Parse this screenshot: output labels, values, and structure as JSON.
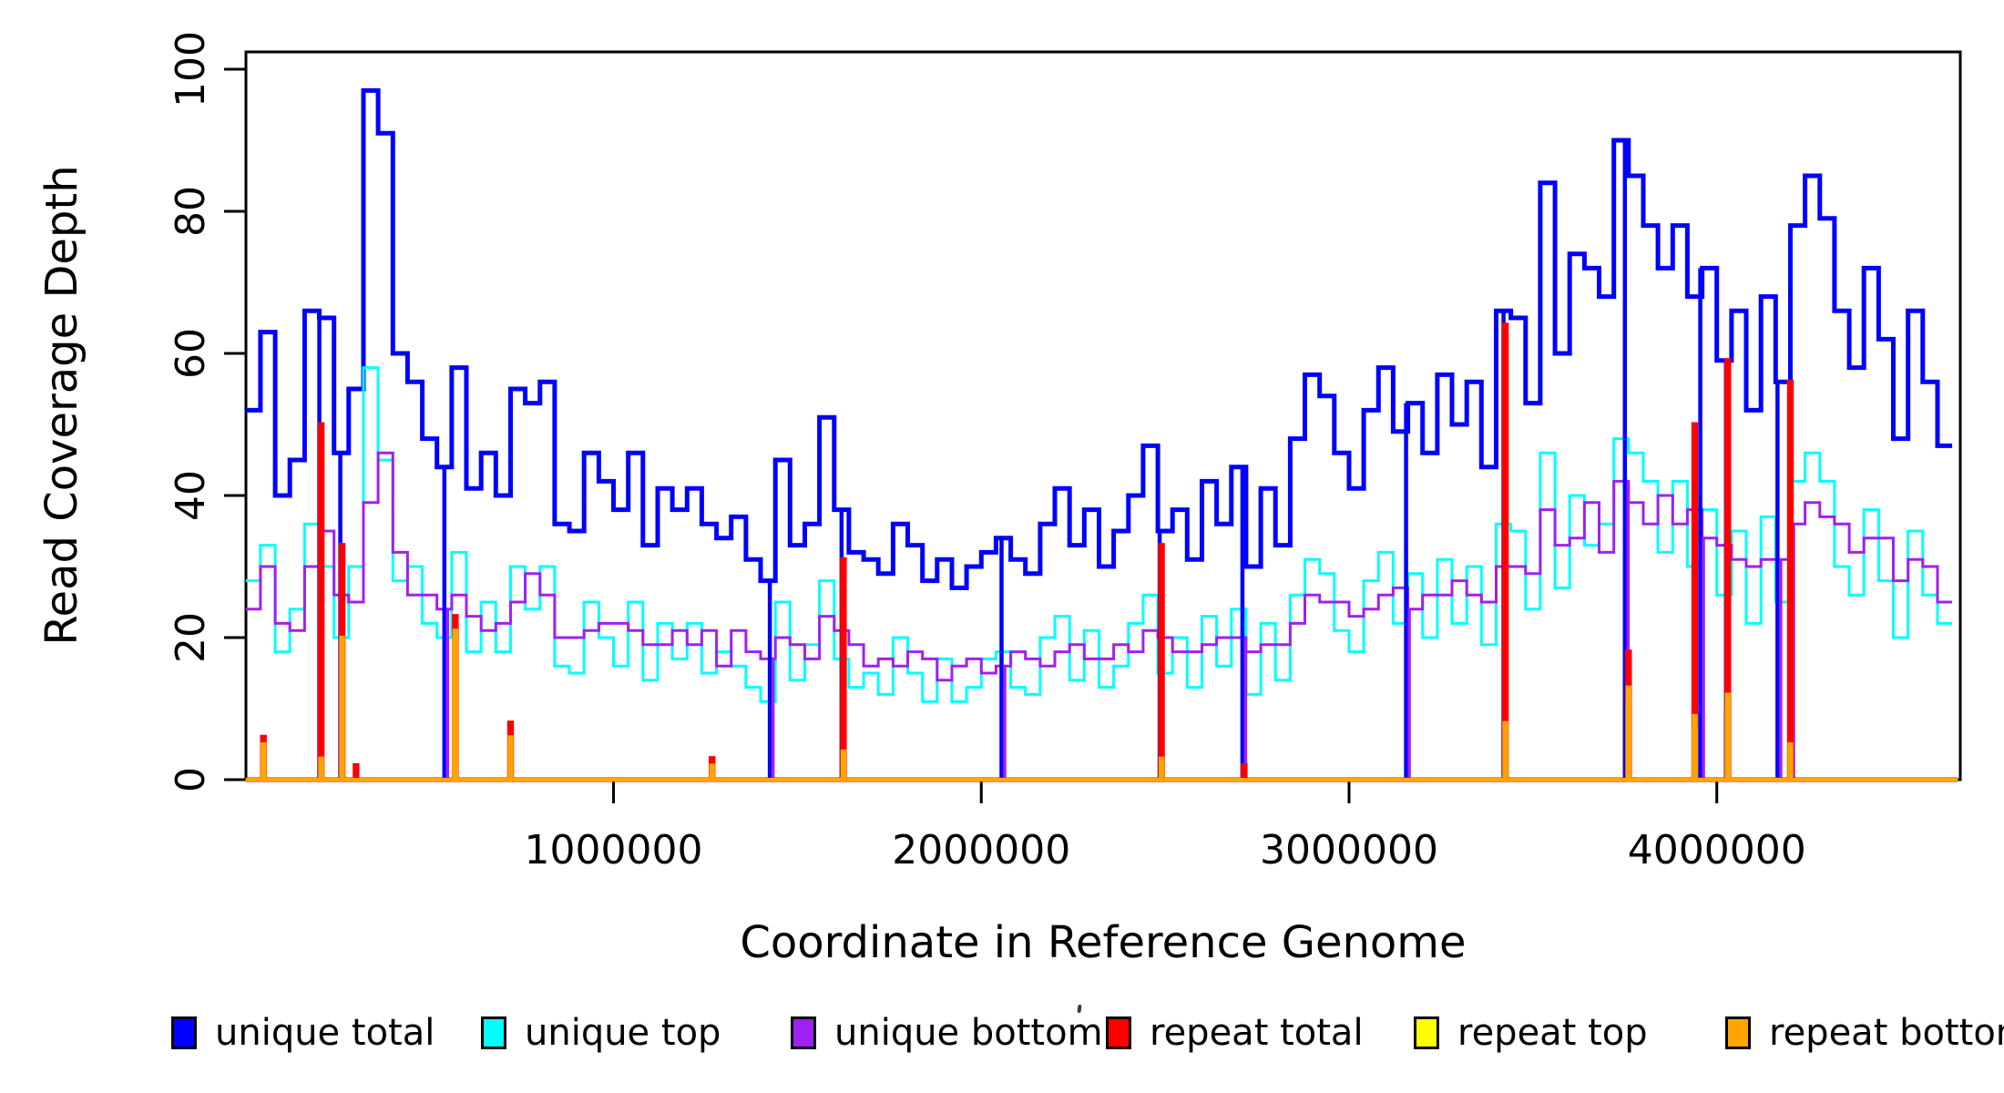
{
  "y_axis": {
    "label": "Read Coverage Depth",
    "tick_labels": [
      "0",
      "20",
      "40",
      "60",
      "80",
      "100"
    ],
    "tick_values": [
      0,
      20,
      40,
      60,
      80,
      100
    ],
    "range": [
      0,
      102
    ]
  },
  "x_axis": {
    "label": "Coordinate in Reference Genome",
    "tick_labels": [
      "1000000",
      "2000000",
      "3000000",
      "4000000"
    ],
    "tick_values": [
      1000000,
      2000000,
      3000000,
      4000000
    ],
    "range": [
      0,
      4662000
    ]
  },
  "legend": {
    "entries": [
      {
        "label": "unique total",
        "color": "#0000FF"
      },
      {
        "label": "unique top",
        "color": "#00FFFF"
      },
      {
        "label": "unique bottom",
        "color": "#A020F0"
      },
      {
        "label": "repeat total",
        "color": "#FF0000"
      },
      {
        "label": "repeat top",
        "color": "#FFFF00"
      },
      {
        "label": "repeat bottom",
        "color": "#FFA500"
      }
    ]
  },
  "chart_data": {
    "type": "line",
    "subtype": "step-coverage",
    "title": "",
    "xlabel": "Coordinate in Reference Genome",
    "ylabel": "Read Coverage Depth",
    "xlim": [
      0,
      4662000
    ],
    "ylim": [
      0,
      102
    ],
    "grid": false,
    "legend_position": "bottom",
    "bin_size_bp": 40000,
    "x_start_bp": 0,
    "genome_length_bp": 4640000,
    "series": [
      {
        "name": "unique total",
        "color": "#0000FF",
        "line_width": 5,
        "values": [
          52,
          63,
          40,
          45,
          66,
          65,
          46,
          55,
          97,
          91,
          60,
          56,
          48,
          44,
          58,
          41,
          46,
          40,
          55,
          53,
          56,
          36,
          35,
          46,
          42,
          38,
          46,
          33,
          41,
          38,
          41,
          36,
          34,
          37,
          31,
          28,
          45,
          33,
          36,
          51,
          38,
          32,
          31,
          29,
          36,
          33,
          28,
          31,
          27,
          30,
          32,
          34,
          31,
          29,
          36,
          41,
          33,
          38,
          30,
          35,
          40,
          47,
          35,
          38,
          31,
          42,
          36,
          44,
          30,
          41,
          33,
          48,
          57,
          54,
          46,
          41,
          52,
          58,
          49,
          53,
          46,
          57,
          50,
          56,
          44,
          66,
          65,
          53,
          84,
          60,
          74,
          72,
          68,
          90,
          85,
          78,
          72,
          78,
          68,
          72,
          59,
          66,
          52,
          68,
          56,
          78,
          85,
          79,
          66,
          58,
          72,
          62,
          48,
          66,
          56,
          47
        ]
      },
      {
        "name": "unique top",
        "color": "#00FFFF",
        "line_width": 3,
        "values": [
          28,
          33,
          18,
          24,
          36,
          30,
          20,
          30,
          58,
          45,
          28,
          30,
          22,
          20,
          32,
          18,
          25,
          18,
          30,
          24,
          30,
          16,
          15,
          25,
          20,
          16,
          25,
          14,
          22,
          17,
          22,
          15,
          18,
          16,
          13,
          11,
          25,
          14,
          19,
          28,
          17,
          13,
          15,
          12,
          20,
          15,
          11,
          17,
          11,
          13,
          17,
          18,
          13,
          12,
          20,
          23,
          14,
          21,
          13,
          16,
          22,
          26,
          15,
          20,
          13,
          23,
          16,
          24,
          12,
          22,
          14,
          26,
          31,
          29,
          21,
          18,
          28,
          32,
          22,
          29,
          20,
          31,
          22,
          30,
          19,
          36,
          35,
          24,
          46,
          27,
          40,
          33,
          36,
          48,
          46,
          42,
          32,
          42,
          30,
          38,
          26,
          35,
          22,
          37,
          25,
          42,
          46,
          42,
          30,
          26,
          38,
          28,
          20,
          35,
          26,
          22
        ]
      },
      {
        "name": "unique bottom",
        "color": "#A020F0",
        "line_width": 3,
        "values": [
          24,
          30,
          22,
          21,
          30,
          35,
          26,
          25,
          39,
          46,
          32,
          26,
          26,
          24,
          26,
          23,
          21,
          22,
          25,
          29,
          26,
          20,
          20,
          21,
          22,
          22,
          21,
          19,
          19,
          21,
          19,
          21,
          16,
          21,
          18,
          17,
          20,
          19,
          17,
          23,
          21,
          19,
          16,
          17,
          16,
          18,
          17,
          14,
          16,
          17,
          15,
          16,
          18,
          17,
          16,
          18,
          19,
          17,
          17,
          19,
          18,
          21,
          20,
          18,
          18,
          19,
          20,
          20,
          18,
          19,
          19,
          22,
          26,
          25,
          25,
          23,
          24,
          26,
          27,
          24,
          26,
          26,
          28,
          26,
          25,
          30,
          30,
          29,
          38,
          33,
          34,
          39,
          32,
          42,
          39,
          36,
          40,
          36,
          38,
          34,
          33,
          31,
          30,
          31,
          31,
          36,
          39,
          37,
          36,
          32,
          34,
          34,
          28,
          31,
          30,
          25
        ]
      },
      {
        "name": "repeat total",
        "color": "#FF0000",
        "line_width": 5,
        "baseline": 0,
        "spikes_bp": [
          [
            48000,
            6
          ],
          [
            205000,
            50
          ],
          [
            262000,
            33
          ],
          [
            300000,
            2
          ],
          [
            570000,
            23
          ],
          [
            720000,
            8
          ],
          [
            1268000,
            3
          ],
          [
            1625000,
            31
          ],
          [
            2490000,
            33
          ],
          [
            2715000,
            2
          ],
          [
            3425000,
            64
          ],
          [
            3760000,
            18
          ],
          [
            3940000,
            50
          ],
          [
            4030000,
            59
          ],
          [
            4200000,
            56
          ]
        ]
      },
      {
        "name": "repeat top",
        "color": "#FFFF00",
        "line_width": 4,
        "baseline": 0,
        "spikes_bp": [
          [
            48000,
            5
          ],
          [
            570000,
            20
          ],
          [
            3760000,
            11
          ],
          [
            3940000,
            7
          ],
          [
            4030000,
            10
          ]
        ]
      },
      {
        "name": "repeat bottom",
        "color": "#FFA500",
        "line_width": 4,
        "baseline": 0,
        "spikes_bp": [
          [
            48000,
            5
          ],
          [
            205000,
            3
          ],
          [
            262000,
            20
          ],
          [
            570000,
            21
          ],
          [
            720000,
            6
          ],
          [
            1268000,
            2
          ],
          [
            1625000,
            4
          ],
          [
            2490000,
            3
          ],
          [
            3425000,
            8
          ],
          [
            3760000,
            13
          ],
          [
            3940000,
            9
          ],
          [
            4030000,
            12
          ],
          [
            4200000,
            5
          ]
        ]
      }
    ],
    "zero_drop_positions_bp": [
      205000,
      262000,
      545000,
      1430000,
      1625000,
      2060000,
      2490000,
      2715000,
      3160000,
      3425000,
      3755000,
      3960000,
      4030000,
      4170000,
      4205000
    ]
  }
}
